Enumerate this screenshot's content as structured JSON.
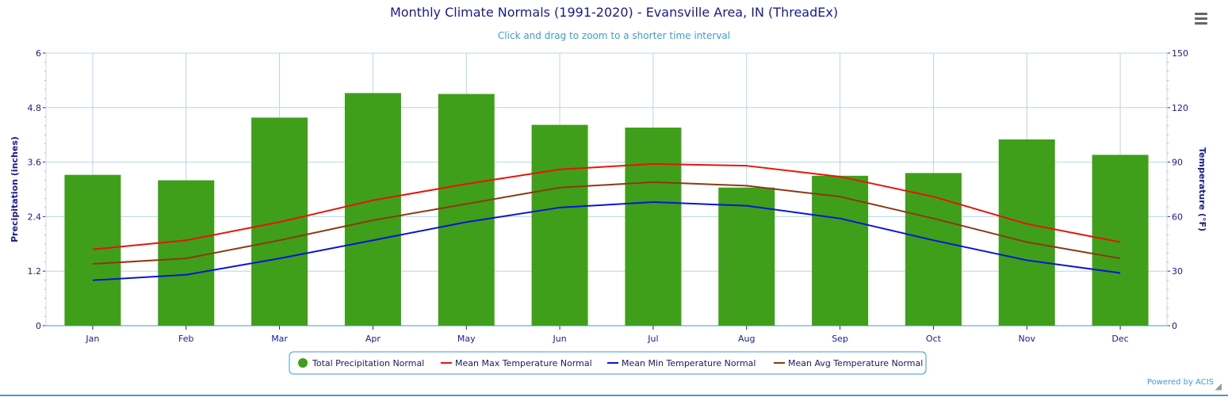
{
  "chart_title": "Monthly Climate Normals (1991-2020) - Evansville Area, IN (ThreadEx)",
  "chart_subtitle": "Click and drag to zoom to a shorter time interval",
  "menu_icon": "hamburger-menu-icon",
  "credit": "Powered by ACIS",
  "colors": {
    "precip": "#3f9f1a",
    "max": "#e8140c",
    "min": "#0a14d8",
    "avg": "#8b3a12",
    "grid": "#b8d4e8",
    "axis_text": "#1a1a8c",
    "legend_border": "#3e9ad6"
  },
  "chart_data": {
    "type": "bar",
    "title": "Monthly Climate Normals (1991-2020) - Evansville Area, IN (ThreadEx)",
    "categories": [
      "Jan",
      "Feb",
      "Mar",
      "Apr",
      "May",
      "Jun",
      "Jul",
      "Aug",
      "Sep",
      "Oct",
      "Nov",
      "Dec"
    ],
    "left_axis": {
      "label": "Precipitation (inches)",
      "range": [
        0,
        6
      ],
      "ticks": [
        "0",
        "1.2",
        "2.4",
        "3.6",
        "4.8",
        "6"
      ]
    },
    "right_axis": {
      "label": "Temperature (°F)",
      "range": [
        0,
        150
      ],
      "ticks": [
        "0",
        "30",
        "60",
        "90",
        "120",
        "150"
      ]
    },
    "grid": true,
    "legend_position": "bottom-center",
    "series": [
      {
        "name": "Total Precipitation Normal",
        "type": "bar",
        "axis": "left",
        "values": [
          3.32,
          3.2,
          4.58,
          5.12,
          5.1,
          4.42,
          4.36,
          3.04,
          3.3,
          3.36,
          4.1,
          3.76
        ]
      },
      {
        "name": "Mean Max Temperature Normal",
        "type": "line",
        "axis": "right",
        "values": [
          42,
          47,
          57,
          69,
          78,
          86,
          89,
          88,
          82,
          71,
          56,
          46
        ]
      },
      {
        "name": "Mean Min Temperature Normal",
        "type": "line",
        "axis": "right",
        "values": [
          25,
          28,
          37,
          47,
          57,
          65,
          68,
          66,
          59,
          47,
          36,
          29
        ]
      },
      {
        "name": "Mean Avg Temperature Normal",
        "type": "line",
        "axis": "right",
        "values": [
          34,
          37,
          47,
          58,
          67,
          76,
          79,
          77,
          71,
          59,
          46,
          37
        ]
      }
    ]
  }
}
